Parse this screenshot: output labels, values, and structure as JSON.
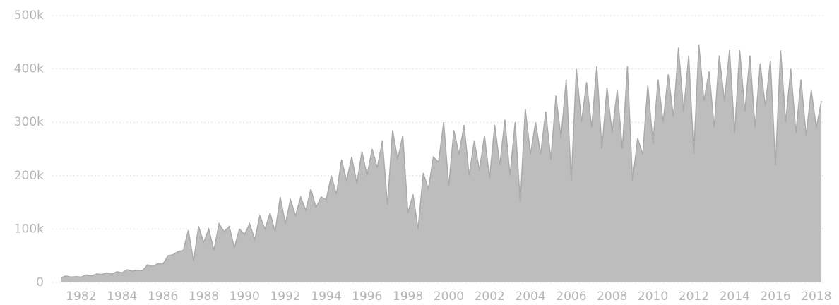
{
  "chart_data": {
    "type": "area",
    "x": [
      1981,
      1981.25,
      1981.5,
      1981.75,
      1982,
      1982.25,
      1982.5,
      1982.75,
      1983,
      1983.25,
      1983.5,
      1983.75,
      1984,
      1984.25,
      1984.5,
      1984.75,
      1985,
      1985.25,
      1985.5,
      1985.75,
      1986,
      1986.25,
      1986.5,
      1986.75,
      1987,
      1987.25,
      1987.5,
      1987.75,
      1988,
      1988.25,
      1988.5,
      1988.75,
      1989,
      1989.25,
      1989.5,
      1989.75,
      1990,
      1990.25,
      1990.5,
      1990.75,
      1991,
      1991.25,
      1991.5,
      1991.75,
      1992,
      1992.25,
      1992.5,
      1992.75,
      1993,
      1993.25,
      1993.5,
      1993.75,
      1994,
      1994.25,
      1994.5,
      1994.75,
      1995,
      1995.25,
      1995.5,
      1995.75,
      1996,
      1996.25,
      1996.5,
      1996.75,
      1997,
      1997.25,
      1997.5,
      1997.75,
      1998,
      1998.25,
      1998.5,
      1998.75,
      1999,
      1999.25,
      1999.5,
      1999.75,
      2000,
      2000.25,
      2000.5,
      2000.75,
      2001,
      2001.25,
      2001.5,
      2001.75,
      2002,
      2002.25,
      2002.5,
      2002.75,
      2003,
      2003.25,
      2003.5,
      2003.75,
      2004,
      2004.25,
      2004.5,
      2004.75,
      2005,
      2005.25,
      2005.5,
      2005.75,
      2006,
      2006.25,
      2006.5,
      2006.75,
      2007,
      2007.25,
      2007.5,
      2007.75,
      2008,
      2008.25,
      2008.5,
      2008.75,
      2009,
      2009.25,
      2009.5,
      2009.75,
      2010,
      2010.25,
      2010.5,
      2010.75,
      2011,
      2011.25,
      2011.5,
      2011.75,
      2012,
      2012.25,
      2012.5,
      2012.75,
      2013,
      2013.25,
      2013.5,
      2013.75,
      2014,
      2014.25,
      2014.5,
      2014.75,
      2015,
      2015.25,
      2015.5,
      2015.75,
      2016,
      2016.25,
      2016.5,
      2016.75,
      2017,
      2017.25,
      2017.5,
      2017.75,
      2018,
      2018.25
    ],
    "values": [
      9000,
      12000,
      10000,
      11000,
      10000,
      14000,
      12000,
      16000,
      15000,
      18000,
      16000,
      20000,
      18000,
      24000,
      21000,
      23000,
      22000,
      33000,
      30000,
      35000,
      34000,
      50000,
      52000,
      58000,
      60000,
      98000,
      40000,
      105000,
      75000,
      100000,
      60000,
      110000,
      95000,
      105000,
      65000,
      100000,
      90000,
      110000,
      80000,
      125000,
      100000,
      130000,
      95000,
      160000,
      110000,
      155000,
      125000,
      160000,
      135000,
      175000,
      140000,
      160000,
      155000,
      200000,
      165000,
      230000,
      190000,
      235000,
      185000,
      245000,
      200000,
      250000,
      215000,
      265000,
      145000,
      285000,
      230000,
      275000,
      130000,
      165000,
      100000,
      205000,
      175000,
      235000,
      225000,
      300000,
      180000,
      285000,
      240000,
      295000,
      200000,
      265000,
      210000,
      275000,
      195000,
      295000,
      220000,
      305000,
      200000,
      300000,
      150000,
      325000,
      240000,
      300000,
      240000,
      320000,
      230000,
      350000,
      270000,
      380000,
      190000,
      400000,
      300000,
      375000,
      290000,
      405000,
      250000,
      365000,
      280000,
      360000,
      250000,
      405000,
      190000,
      270000,
      240000,
      370000,
      260000,
      380000,
      300000,
      390000,
      310000,
      440000,
      320000,
      425000,
      240000,
      445000,
      340000,
      395000,
      290000,
      425000,
      340000,
      435000,
      280000,
      435000,
      320000,
      425000,
      290000,
      410000,
      330000,
      415000,
      220000,
      435000,
      300000,
      400000,
      280000,
      380000,
      275000,
      360000,
      290000,
      340000
    ],
    "color": "#bdbdbd",
    "xlim": [
      1981,
      2018.35
    ],
    "xticks": [
      1982,
      1984,
      1986,
      1988,
      1990,
      1992,
      1994,
      1996,
      1998,
      2000,
      2002,
      2004,
      2006,
      2008,
      2010,
      2012,
      2014,
      2016,
      2018
    ],
    "ylim": [
      0,
      500000
    ],
    "yticks": [
      0,
      {
        "value": 100000,
        "label": "100k"
      },
      {
        "value": 200000,
        "label": "200k"
      },
      {
        "value": 300000,
        "label": "300k"
      },
      {
        "value": 400000,
        "label": "400k"
      },
      {
        "value": 500000,
        "label": "500k"
      }
    ],
    "grid": true
  }
}
